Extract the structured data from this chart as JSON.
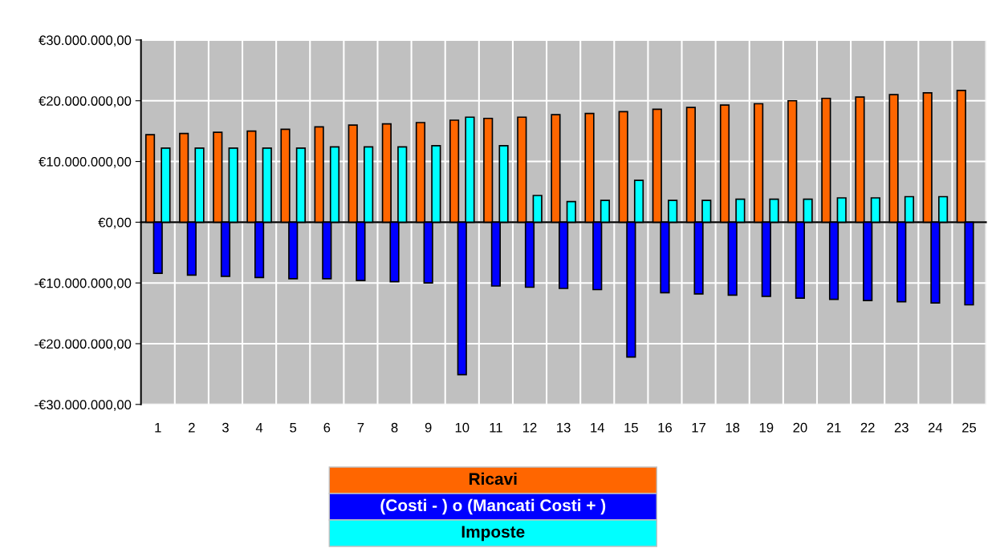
{
  "chart_data": {
    "type": "bar",
    "categories": [
      "1",
      "2",
      "3",
      "4",
      "5",
      "6",
      "7",
      "8",
      "9",
      "10",
      "11",
      "12",
      "13",
      "14",
      "15",
      "16",
      "17",
      "18",
      "19",
      "20",
      "21",
      "22",
      "23",
      "24",
      "25"
    ],
    "series": [
      {
        "name": "Ricavi",
        "color": "#ff6600",
        "values": [
          14400000,
          14600000,
          14800000,
          15000000,
          15300000,
          15700000,
          16000000,
          16200000,
          16400000,
          16800000,
          17100000,
          17300000,
          17700000,
          17900000,
          18200000,
          18600000,
          18900000,
          19300000,
          19500000,
          20000000,
          20400000,
          20600000,
          21000000,
          21300000,
          21700000
        ]
      },
      {
        "name": "(Costi - ) o (Mancati Costi + )",
        "color": "#0000ff",
        "values": [
          -8400000,
          -8700000,
          -8900000,
          -9100000,
          -9300000,
          -9300000,
          -9600000,
          -9800000,
          -10000000,
          -25100000,
          -10500000,
          -10700000,
          -10900000,
          -11100000,
          -22200000,
          -11600000,
          -11800000,
          -12000000,
          -12200000,
          -12500000,
          -12700000,
          -12900000,
          -13100000,
          -13300000,
          -13600000
        ]
      },
      {
        "name": "Imposte",
        "color": "#00ffff",
        "values": [
          12200000,
          12200000,
          12200000,
          12200000,
          12200000,
          12400000,
          12400000,
          12400000,
          12600000,
          17300000,
          12600000,
          4400000,
          3400000,
          3600000,
          6900000,
          3600000,
          3600000,
          3800000,
          3800000,
          3800000,
          4000000,
          4000000,
          4200000,
          4200000,
          null
        ]
      }
    ],
    "ylim": [
      -30000000,
      30000000
    ],
    "yticks": [
      {
        "value": -30000000,
        "label": "-€30.000.000,00"
      },
      {
        "value": -20000000,
        "label": "-€20.000.000,00"
      },
      {
        "value": -10000000,
        "label": "-€10.000.000,00"
      },
      {
        "value": 0,
        "label": "€0,00"
      },
      {
        "value": 10000000,
        "label": "€10.000.000,00"
      },
      {
        "value": 20000000,
        "label": "€20.000.000,00"
      },
      {
        "value": 30000000,
        "label": "€30.000.000,00"
      }
    ],
    "grid": true,
    "legend": "bottom"
  }
}
